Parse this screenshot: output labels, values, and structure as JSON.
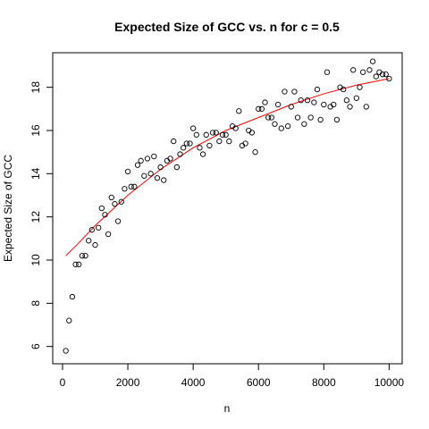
{
  "chart_data": {
    "type": "scatter",
    "title": "Expected Size of GCC vs. n for c = 0.5",
    "xlabel": "n",
    "ylabel": "Expected Size of GCC",
    "xlim": [
      -300,
      10400
    ],
    "ylim": [
      5.2,
      19.6
    ],
    "xticks": [
      0,
      2000,
      4000,
      6000,
      8000,
      10000
    ],
    "yticks": [
      6,
      8,
      10,
      12,
      14,
      16,
      18
    ],
    "grid": false,
    "legend": "none",
    "colors": {
      "points": "#000000",
      "fit": "#ff0000"
    },
    "series": [
      {
        "kind": "points",
        "x": [
          100,
          200,
          300,
          400,
          500,
          600,
          700,
          800,
          900,
          1000,
          1100,
          1200,
          1300,
          1400,
          1500,
          1600,
          1700,
          1800,
          1900,
          2000,
          2100,
          2200,
          2300,
          2400,
          2500,
          2600,
          2700,
          2800,
          2900,
          3000,
          3100,
          3200,
          3300,
          3400,
          3500,
          3600,
          3700,
          3800,
          3900,
          4000,
          4100,
          4200,
          4300,
          4400,
          4500,
          4600,
          4700,
          4800,
          4900,
          5000,
          5100,
          5200,
          5300,
          5400,
          5500,
          5600,
          5700,
          5800,
          5900,
          6000,
          6100,
          6200,
          6300,
          6400,
          6500,
          6600,
          6700,
          6800,
          6900,
          7000,
          7100,
          7200,
          7300,
          7400,
          7500,
          7600,
          7700,
          7800,
          7900,
          8000,
          8100,
          8200,
          8300,
          8400,
          8500,
          8600,
          8700,
          8800,
          8900,
          9000,
          9100,
          9200,
          9300,
          9400,
          9500,
          9600,
          9700,
          9800,
          9900,
          10000
        ],
        "y": [
          5.8,
          7.2,
          8.3,
          9.8,
          9.8,
          10.2,
          10.2,
          10.9,
          11.4,
          10.7,
          11.5,
          12.4,
          12.1,
          11.2,
          12.9,
          12.6,
          11.8,
          12.7,
          13.3,
          14.1,
          13.4,
          13.4,
          14.4,
          14.6,
          13.9,
          14.7,
          14.0,
          14.8,
          13.8,
          14.3,
          13.7,
          14.6,
          14.7,
          15.5,
          14.3,
          14.9,
          15.2,
          15.4,
          15.4,
          16.1,
          15.8,
          15.2,
          14.9,
          15.8,
          15.3,
          15.9,
          15.9,
          15.5,
          15.8,
          15.8,
          15.5,
          16.2,
          16.1,
          16.9,
          15.3,
          15.4,
          16.0,
          15.9,
          15.0,
          17.0,
          17.0,
          17.3,
          16.6,
          16.6,
          16.3,
          17.2,
          16.1,
          17.8,
          16.2,
          17.1,
          17.8,
          16.6,
          17.4,
          16.3,
          17.4,
          16.6,
          17.3,
          17.9,
          16.5,
          17.2,
          18.7,
          17.1,
          17.2,
          16.5,
          18.0,
          17.9,
          17.4,
          17.1,
          18.8,
          17.5,
          18.0,
          18.7,
          17.1,
          18.8,
          19.2,
          18.5,
          18.7,
          18.6,
          18.6,
          18.4
        ]
      },
      {
        "kind": "fit",
        "x": [
          100,
          500,
          1000,
          1500,
          2000,
          2500,
          3000,
          3500,
          4000,
          4500,
          5000,
          5500,
          6000,
          6500,
          7000,
          7500,
          8000,
          8500,
          9000,
          9500,
          10000
        ],
        "y": [
          10.2,
          10.8,
          11.6,
          12.3,
          13.0,
          13.6,
          14.2,
          14.7,
          15.2,
          15.6,
          16.0,
          16.3,
          16.6,
          16.9,
          17.2,
          17.45,
          17.7,
          17.9,
          18.1,
          18.25,
          18.4
        ]
      }
    ]
  }
}
